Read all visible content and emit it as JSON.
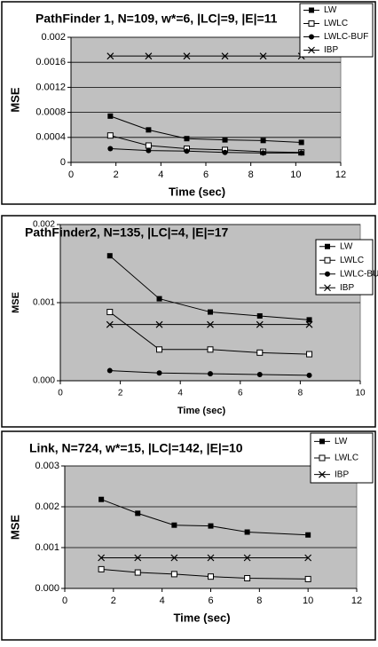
{
  "chart_data": [
    {
      "type": "line",
      "title": "PathFinder 1, N=109, w*=6, |LC|=9, |E|=11",
      "x_label": "Time (sec)",
      "y_label": "MSE",
      "x": [
        1.75,
        3.45,
        5.15,
        6.85,
        8.55,
        10.25
      ],
      "series": [
        {
          "name": "LW",
          "color": "#000000",
          "marker": "filled-square",
          "values": [
            0.00074,
            0.00052,
            0.00038,
            0.00036,
            0.00035,
            0.00032
          ]
        },
        {
          "name": "LWLC",
          "color": "#000000",
          "marker": "open-square",
          "values": [
            0.00043,
            0.00027,
            0.00022,
            0.0002,
            0.00017,
            0.00016
          ]
        },
        {
          "name": "LWLC-BUF",
          "color": "#000000",
          "marker": "circle",
          "values": [
            0.00022,
            0.00019,
            0.00018,
            0.00016,
            0.00015,
            0.00015
          ]
        },
        {
          "name": "IBP",
          "color": "#000000",
          "marker": "cross",
          "values": [
            0.0017,
            0.0017,
            0.0017,
            0.0017,
            0.0017,
            0.0017
          ]
        }
      ],
      "xlim": [
        0,
        12
      ],
      "xticks": [
        0,
        2,
        4,
        6,
        8,
        10,
        12
      ],
      "ylim": [
        0,
        0.002
      ],
      "yticks": [
        0,
        0.0004,
        0.0008,
        0.0012,
        0.0016,
        0.002
      ],
      "grid": true,
      "legend": "upper right"
    },
    {
      "type": "line",
      "title": "PathFinder2, N=135, |LC|=4, |E|=17",
      "x_label": "Time (sec)",
      "y_label": "MSE",
      "x": [
        1.65,
        3.3,
        5,
        6.65,
        8.3
      ],
      "series": [
        {
          "name": "LW",
          "color": "#000000",
          "marker": "filled-square",
          "values": [
            0.0016,
            0.00105,
            0.00088,
            0.00083,
            0.00078
          ]
        },
        {
          "name": "LWLC",
          "color": "#000000",
          "marker": "open-square",
          "values": [
            0.00088,
            0.0004,
            0.0004,
            0.00036,
            0.00034
          ]
        },
        {
          "name": "LWLC-BUF",
          "color": "#000000",
          "marker": "circle",
          "values": [
            0.00013,
            0.0001,
            9e-05,
            8e-05,
            7e-05
          ]
        },
        {
          "name": "IBP",
          "color": "#000000",
          "marker": "cross",
          "values": [
            0.00072,
            0.00072,
            0.00072,
            0.00072,
            0.00072
          ]
        }
      ],
      "xlim": [
        0,
        10
      ],
      "xticks": [
        0,
        2,
        4,
        6,
        8,
        10
      ],
      "ylim": [
        0,
        0.002
      ],
      "yticks": [
        {
          "value": 0,
          "label": "0.000"
        },
        {
          "value": 0.001,
          "label": "0.001"
        },
        {
          "value": 0.002,
          "label": "0.002"
        }
      ],
      "grid": true,
      "legend": "upper right"
    },
    {
      "type": "line",
      "title": "Link, N=724, w*=15, |LC|=142, |E|=10",
      "x_label": "Time (sec)",
      "y_label": "MSE",
      "x": [
        1.5,
        3,
        4.5,
        6,
        7.5,
        10
      ],
      "series": [
        {
          "name": "LW",
          "color": "#000000",
          "marker": "filled-square",
          "values": [
            0.00218,
            0.00184,
            0.00155,
            0.00153,
            0.00138,
            0.00131
          ]
        },
        {
          "name": "LWLC",
          "color": "#000000",
          "marker": "open-square",
          "values": [
            0.00047,
            0.00039,
            0.00035,
            0.00029,
            0.00025,
            0.00023
          ]
        },
        {
          "name": "IBP",
          "color": "#000000",
          "marker": "cross",
          "values": [
            0.00075,
            0.00075,
            0.00075,
            0.00075,
            0.00075,
            0.00075
          ]
        }
      ],
      "xlim": [
        0,
        12
      ],
      "xticks": [
        0,
        2,
        4,
        6,
        8,
        10,
        12
      ],
      "ylim": [
        0,
        0.003
      ],
      "yticks": [
        {
          "value": 0,
          "label": "0.000"
        },
        {
          "value": 0.001,
          "label": "0.001"
        },
        {
          "value": 0.002,
          "label": "0.002"
        },
        {
          "value": 0.003,
          "label": "0.003"
        }
      ],
      "grid": true,
      "legend": "upper right"
    }
  ]
}
